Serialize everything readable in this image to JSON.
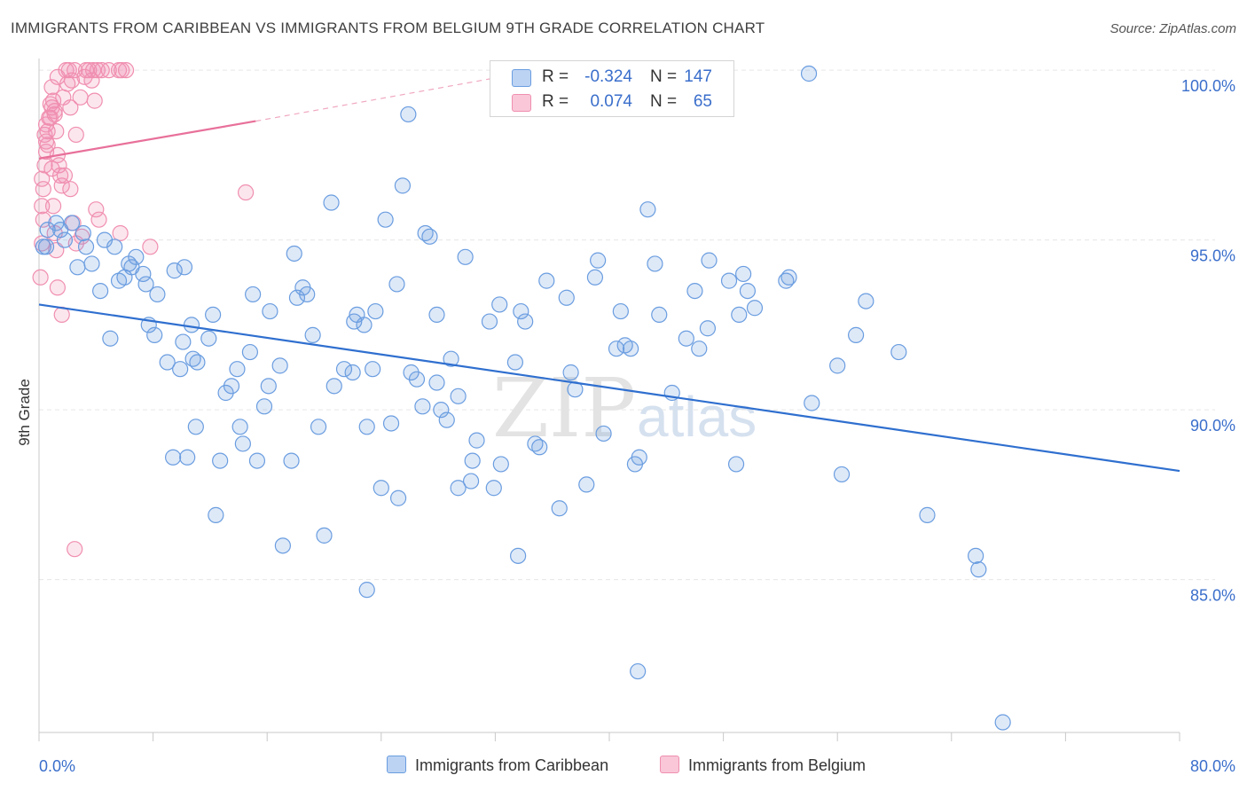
{
  "title": "IMMIGRANTS FROM CARIBBEAN VS IMMIGRANTS FROM BELGIUM 9TH GRADE CORRELATION CHART",
  "source": "Source: ZipAtlas.com",
  "colors": {
    "blue": "#6a9de0",
    "blue_line": "#2f6fcf",
    "pink": "#f08fb0",
    "pink_line": "#e8709a",
    "tick_text": "#3a6ecb"
  },
  "legend_top": [
    {
      "r_label": "R =",
      "r_value": "-0.324",
      "n_label": "N =",
      "n_value": "147"
    },
    {
      "r_label": "R =",
      "r_value": "0.074",
      "n_label": "N =",
      "n_value": "65"
    }
  ],
  "chart_data": {
    "type": "scatter",
    "xlabel": "",
    "ylabel": "9th Grade",
    "xlim": [
      0,
      80
    ],
    "ylim": [
      80.5,
      100.5
    ],
    "x_tick_labels": [
      "0.0%",
      "80.0%"
    ],
    "y_tick_labels": [
      "100.0%",
      "95.0%",
      "90.0%",
      "85.0%"
    ],
    "y_ticks": [
      100,
      95,
      90,
      85
    ],
    "grid": true,
    "watermark": "ZIPatlas",
    "series": [
      {
        "name": "Immigrants from Caribbean",
        "color": "#6a9de0",
        "trend": {
          "x": [
            0,
            80
          ],
          "y": [
            93.1,
            88.2
          ]
        },
        "points": [
          [
            0.3,
            94.8
          ],
          [
            0.5,
            94.8
          ],
          [
            0.6,
            95.3
          ],
          [
            1.2,
            95.5
          ],
          [
            1.5,
            95.3
          ],
          [
            2.3,
            95.5
          ],
          [
            1.8,
            95.0
          ],
          [
            3.1,
            95.2
          ],
          [
            2.7,
            94.2
          ],
          [
            3.3,
            94.8
          ],
          [
            3.7,
            94.3
          ],
          [
            4.6,
            95.0
          ],
          [
            5.3,
            94.8
          ],
          [
            6.0,
            93.9
          ],
          [
            6.3,
            94.3
          ],
          [
            6.5,
            94.2
          ],
          [
            6.8,
            94.5
          ],
          [
            7.3,
            94.0
          ],
          [
            4.3,
            93.5
          ],
          [
            5.6,
            93.8
          ],
          [
            7.5,
            93.7
          ],
          [
            8.3,
            93.4
          ],
          [
            9.5,
            94.1
          ],
          [
            10.2,
            94.2
          ],
          [
            7.7,
            92.5
          ],
          [
            8.1,
            92.2
          ],
          [
            10.1,
            92.0
          ],
          [
            10.7,
            92.5
          ],
          [
            11.9,
            92.1
          ],
          [
            12.2,
            92.8
          ],
          [
            5.0,
            92.1
          ],
          [
            9.0,
            91.4
          ],
          [
            9.9,
            91.2
          ],
          [
            10.8,
            91.5
          ],
          [
            11.1,
            91.4
          ],
          [
            13.1,
            90.5
          ],
          [
            13.5,
            90.7
          ],
          [
            13.9,
            91.2
          ],
          [
            14.8,
            91.7
          ],
          [
            15.8,
            90.1
          ],
          [
            16.1,
            90.7
          ],
          [
            16.9,
            91.3
          ],
          [
            17.9,
            94.6
          ],
          [
            16.2,
            92.9
          ],
          [
            15.0,
            93.4
          ],
          [
            18.1,
            93.3
          ],
          [
            18.5,
            93.6
          ],
          [
            18.8,
            93.4
          ],
          [
            19.2,
            92.2
          ],
          [
            20.5,
            96.1
          ],
          [
            19.6,
            89.5
          ],
          [
            20.7,
            90.7
          ],
          [
            21.4,
            91.2
          ],
          [
            22.0,
            91.1
          ],
          [
            22.1,
            92.6
          ],
          [
            22.3,
            92.8
          ],
          [
            22.8,
            92.5
          ],
          [
            23.6,
            92.9
          ],
          [
            23.4,
            91.2
          ],
          [
            11.0,
            89.5
          ],
          [
            14.1,
            89.5
          ],
          [
            14.3,
            89.0
          ],
          [
            9.4,
            88.6
          ],
          [
            10.4,
            88.6
          ],
          [
            12.7,
            88.5
          ],
          [
            15.3,
            88.5
          ],
          [
            17.7,
            88.5
          ],
          [
            12.4,
            86.9
          ],
          [
            17.1,
            86.0
          ],
          [
            20.0,
            86.3
          ],
          [
            23.0,
            84.7
          ],
          [
            23.0,
            89.5
          ],
          [
            24.3,
            95.6
          ],
          [
            24.7,
            89.6
          ],
          [
            24.0,
            87.7
          ],
          [
            25.2,
            87.4
          ],
          [
            25.9,
            98.7
          ],
          [
            25.1,
            93.7
          ],
          [
            25.5,
            96.6
          ],
          [
            26.1,
            91.1
          ],
          [
            26.5,
            90.9
          ],
          [
            26.9,
            90.1
          ],
          [
            27.4,
            95.1
          ],
          [
            27.1,
            95.2
          ],
          [
            27.9,
            92.8
          ],
          [
            27.9,
            90.8
          ],
          [
            28.2,
            90.0
          ],
          [
            28.9,
            91.5
          ],
          [
            28.6,
            89.7
          ],
          [
            29.4,
            90.4
          ],
          [
            29.9,
            94.5
          ],
          [
            29.4,
            87.7
          ],
          [
            30.3,
            87.9
          ],
          [
            30.7,
            89.1
          ],
          [
            31.6,
            92.6
          ],
          [
            30.4,
            88.5
          ],
          [
            31.9,
            87.7
          ],
          [
            32.3,
            93.1
          ],
          [
            32.4,
            88.4
          ],
          [
            33.4,
            91.4
          ],
          [
            33.8,
            92.9
          ],
          [
            34.1,
            92.6
          ],
          [
            34.8,
            89.0
          ],
          [
            35.1,
            88.9
          ],
          [
            35.6,
            93.8
          ],
          [
            36.5,
            87.1
          ],
          [
            37.0,
            93.3
          ],
          [
            33.6,
            85.7
          ],
          [
            37.3,
            91.1
          ],
          [
            37.6,
            90.6
          ],
          [
            39.0,
            93.9
          ],
          [
            39.2,
            94.4
          ],
          [
            38.4,
            87.8
          ],
          [
            39.6,
            89.3
          ],
          [
            40.5,
            91.8
          ],
          [
            40.8,
            92.9
          ],
          [
            41.1,
            91.9
          ],
          [
            41.5,
            91.8
          ],
          [
            41.8,
            88.4
          ],
          [
            42.1,
            88.6
          ],
          [
            43.2,
            94.3
          ],
          [
            42.7,
            95.9
          ],
          [
            43.5,
            92.8
          ],
          [
            44.4,
            90.5
          ],
          [
            46.0,
            93.5
          ],
          [
            45.4,
            92.1
          ],
          [
            46.3,
            91.8
          ],
          [
            46.9,
            92.4
          ],
          [
            47.0,
            94.4
          ],
          [
            48.4,
            93.8
          ],
          [
            49.1,
            92.8
          ],
          [
            48.9,
            88.4
          ],
          [
            49.7,
            93.5
          ],
          [
            49.4,
            94.0
          ],
          [
            50.2,
            93.0
          ],
          [
            52.4,
            93.8
          ],
          [
            52.6,
            93.9
          ],
          [
            54.0,
            99.9
          ],
          [
            54.2,
            90.2
          ],
          [
            56.0,
            91.3
          ],
          [
            57.3,
            92.2
          ],
          [
            58.0,
            93.2
          ],
          [
            56.3,
            88.1
          ],
          [
            60.3,
            91.7
          ],
          [
            62.3,
            86.9
          ],
          [
            65.7,
            85.7
          ],
          [
            65.9,
            85.3
          ],
          [
            42.0,
            82.3
          ],
          [
            67.6,
            80.8
          ]
        ]
      },
      {
        "name": "Immigrants from Belgium",
        "color": "#f08fb0",
        "trend": {
          "x": [
            0,
            15.2
          ],
          "y": [
            97.4,
            98.5
          ]
        },
        "trend_extension": {
          "x": [
            15.2,
            35.0
          ],
          "y": [
            98.5,
            100.0
          ]
        },
        "points": [
          [
            0.1,
            93.9
          ],
          [
            0.2,
            94.9
          ],
          [
            0.3,
            95.6
          ],
          [
            0.2,
            96.0
          ],
          [
            0.3,
            96.5
          ],
          [
            0.2,
            96.8
          ],
          [
            0.4,
            97.2
          ],
          [
            0.5,
            97.6
          ],
          [
            0.6,
            97.8
          ],
          [
            0.4,
            98.1
          ],
          [
            0.5,
            98.4
          ],
          [
            0.7,
            98.6
          ],
          [
            0.8,
            99.0
          ],
          [
            0.9,
            98.9
          ],
          [
            1.0,
            99.1
          ],
          [
            1.1,
            98.7
          ],
          [
            1.2,
            98.2
          ],
          [
            1.3,
            97.5
          ],
          [
            1.4,
            97.2
          ],
          [
            1.5,
            96.9
          ],
          [
            1.6,
            96.6
          ],
          [
            1.0,
            96.0
          ],
          [
            1.1,
            95.2
          ],
          [
            1.2,
            94.7
          ],
          [
            1.3,
            93.6
          ],
          [
            1.6,
            92.8
          ],
          [
            0.9,
            99.5
          ],
          [
            1.3,
            99.8
          ],
          [
            1.7,
            99.2
          ],
          [
            1.9,
            100.0
          ],
          [
            2.1,
            100.0
          ],
          [
            2.0,
            99.6
          ],
          [
            2.3,
            99.7
          ],
          [
            2.5,
            100.0
          ],
          [
            2.9,
            99.2
          ],
          [
            2.6,
            98.1
          ],
          [
            2.2,
            96.5
          ],
          [
            2.4,
            95.5
          ],
          [
            2.6,
            94.9
          ],
          [
            3.0,
            95.1
          ],
          [
            3.2,
            99.8
          ],
          [
            3.3,
            100.0
          ],
          [
            3.5,
            100.0
          ],
          [
            3.7,
            99.7
          ],
          [
            3.8,
            100.0
          ],
          [
            4.1,
            100.0
          ],
          [
            3.9,
            99.1
          ],
          [
            4.0,
            95.9
          ],
          [
            4.2,
            95.6
          ],
          [
            4.4,
            100.0
          ],
          [
            4.9,
            100.0
          ],
          [
            5.6,
            100.0
          ],
          [
            5.8,
            100.0
          ],
          [
            6.1,
            100.0
          ],
          [
            5.7,
            95.2
          ],
          [
            7.8,
            94.8
          ],
          [
            14.5,
            96.4
          ],
          [
            2.5,
            85.9
          ],
          [
            1.1,
            98.8
          ],
          [
            0.8,
            98.6
          ],
          [
            0.6,
            98.2
          ],
          [
            0.5,
            97.9
          ],
          [
            0.9,
            97.1
          ],
          [
            1.8,
            96.9
          ],
          [
            2.2,
            98.9
          ]
        ]
      }
    ]
  }
}
